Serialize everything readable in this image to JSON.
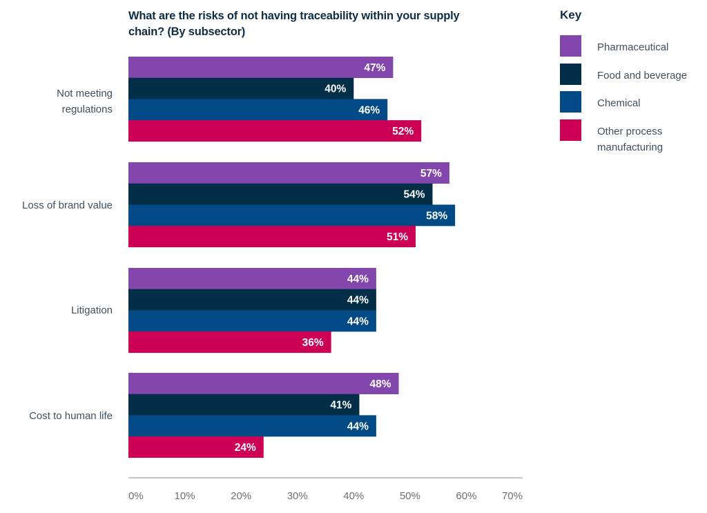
{
  "chart_data": {
    "type": "bar",
    "orientation": "horizontal",
    "title": "What are the risks of not having traceability within your supply chain? (By subsector)",
    "xlabel": "",
    "ylabel": "",
    "xlim": [
      0,
      70
    ],
    "x_ticks": [
      "0%",
      "10%",
      "20%",
      "30%",
      "40%",
      "50%",
      "60%",
      "70%"
    ],
    "grid": false,
    "legend_title": "Key",
    "legend_position": "top-right",
    "categories": [
      "Not meeting\nregulations",
      "Loss of brand value",
      "Litigation",
      "Cost to human life"
    ],
    "series": [
      {
        "name": "Pharmaceutical",
        "color": "#8346ad",
        "values": [
          47,
          57,
          44,
          48
        ]
      },
      {
        "name": "Food and beverage",
        "color": "#022f47",
        "values": [
          40,
          54,
          44,
          41
        ]
      },
      {
        "name": "Chemical",
        "color": "#024a86",
        "values": [
          46,
          58,
          44,
          44
        ]
      },
      {
        "name": "Other process\nmanufacturing",
        "color": "#cc0055",
        "values": [
          52,
          51,
          36,
          24
        ]
      }
    ],
    "value_suffix": "%"
  }
}
